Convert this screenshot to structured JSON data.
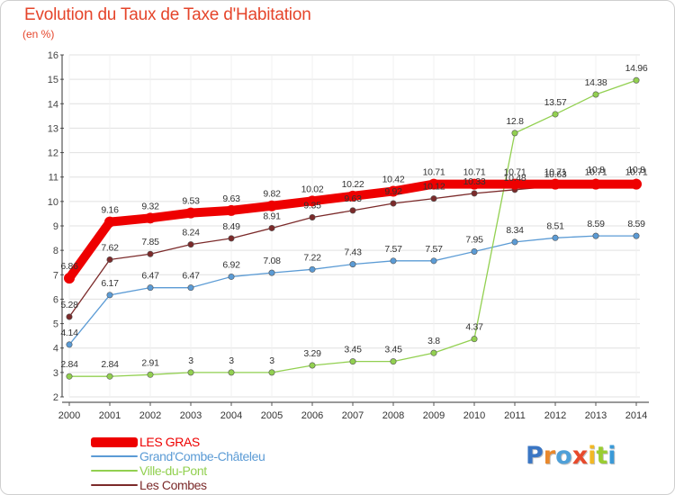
{
  "header": {
    "title": "Evolution du Taux de Taxe d'Habitation",
    "subtitle": "(en %)"
  },
  "logo": {
    "letters": [
      "P",
      "r",
      "o",
      "x",
      "i",
      "t",
      "i"
    ],
    "colors": [
      "#3a76c4",
      "#e9882c",
      "#4fa0d8",
      "#e84a2c",
      "#f2b824",
      "#9acd32",
      "#3a9ad8"
    ]
  },
  "colors": {
    "title": "#e5452b",
    "axis": "#333333",
    "grid": "#e0e0e0"
  },
  "chart_data": {
    "type": "line",
    "title": "Evolution du Taux de Taxe d'Habitation",
    "ylabel": "(en %)",
    "xlabel": "",
    "x": [
      "2000",
      "2001",
      "2002",
      "2003",
      "2004",
      "2005",
      "2006",
      "2007",
      "2008",
      "2009",
      "2010",
      "2011",
      "2012",
      "2013",
      "2014"
    ],
    "ylim": [
      2,
      16
    ],
    "yticks": [
      "2",
      "3",
      "4",
      "5",
      "6",
      "7",
      "8",
      "9",
      "10",
      "11",
      "12",
      "13",
      "14",
      "15",
      "16"
    ],
    "grid": true,
    "legend_position": "bottom-left",
    "series": [
      {
        "name": "LES GRAS",
        "color": "#ee0000",
        "values": [
          6.86,
          9.16,
          9.32,
          9.53,
          9.63,
          9.82,
          10.02,
          10.22,
          10.42,
          10.71,
          10.71,
          10.71,
          10.71,
          10.71,
          10.71
        ],
        "labels": [
          "6.86",
          "9.16",
          "9.32",
          "9.53",
          "9.63",
          "9.82",
          "10.02",
          "10.22",
          "10.42",
          "10.71",
          "10.71",
          "10.71",
          "10.71",
          "10.71",
          "10.71"
        ]
      },
      {
        "name": "Grand'Combe-Châteleu",
        "color": "#5b9bd5",
        "values": [
          4.14,
          6.17,
          6.47,
          6.47,
          6.92,
          7.08,
          7.22,
          7.43,
          7.57,
          7.57,
          7.95,
          8.34,
          8.51,
          8.59,
          8.59
        ],
        "labels": [
          "4.14",
          "6.17",
          "6.47",
          "6.47",
          "6.92",
          "7.08",
          "7.22",
          "7.43",
          "7.57",
          "7.57",
          "7.95",
          "8.34",
          "8.51",
          "8.59",
          "8.59"
        ]
      },
      {
        "name": "Ville-du-Pont",
        "color": "#92d050",
        "values": [
          2.84,
          2.84,
          2.91,
          3,
          3,
          3,
          3.29,
          3.45,
          3.45,
          3.8,
          4.37,
          12.8,
          13.57,
          14.38,
          14.96
        ],
        "labels": [
          "2.84",
          "2.84",
          "2.91",
          "3",
          "3",
          "3",
          "3.29",
          "3.45",
          "3.45",
          "3.8",
          "4.37",
          "12.8",
          "13.57",
          "14.38",
          "14.96"
        ]
      },
      {
        "name": "Les Combes",
        "color": "#7b2a2a",
        "values": [
          5.28,
          7.62,
          7.85,
          8.24,
          8.49,
          8.91,
          9.35,
          9.63,
          9.92,
          10.12,
          10.33,
          10.48,
          10.63,
          10.8,
          10.8
        ],
        "labels": [
          "5.28",
          "7.62",
          "7.85",
          "8.24",
          "8.49",
          "8.91",
          "9.35",
          "9.63",
          "9.92",
          "10.12",
          "10.33",
          "10.48",
          "10.63",
          "10.8",
          "10.8"
        ]
      }
    ]
  }
}
